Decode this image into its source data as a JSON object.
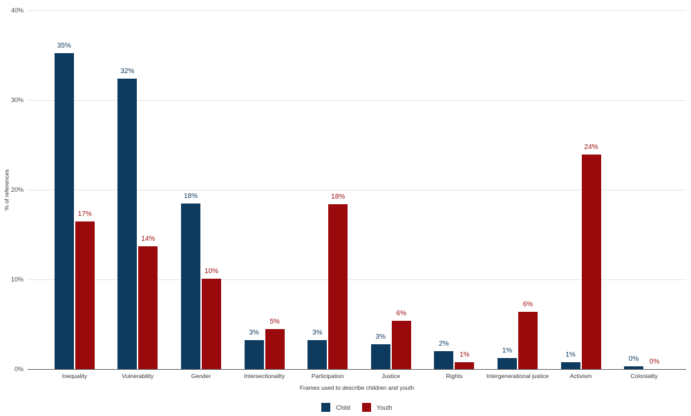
{
  "chart_data": {
    "type": "bar",
    "title": "",
    "xlabel": "Frames used to describe children and youth",
    "ylabel": "% of references",
    "categories": [
      "Inequality",
      "Vulnerability",
      "Gender",
      "Intersectionality",
      "Participation",
      "Justice",
      "Rights",
      "Intergenerational justice",
      "Activism",
      "Coloniality"
    ],
    "series": [
      {
        "name": "Child",
        "color": "#0d3a5f",
        "values": [
          35,
          32,
          18,
          3,
          3,
          3,
          2,
          1,
          1,
          0
        ],
        "labels": [
          "35%",
          "32%",
          "18%",
          "3%",
          "3%",
          "3%",
          "2%",
          "1%",
          "1%",
          "0%"
        ],
        "heights_pct": [
          35.2,
          32.4,
          18.5,
          3.2,
          3.2,
          2.8,
          2.0,
          1.2,
          0.8,
          0.3
        ]
      },
      {
        "name": "Youth",
        "color": "#9a0a0c",
        "values": [
          17,
          14,
          10,
          5,
          18,
          6,
          1,
          6,
          24,
          0
        ],
        "labels": [
          "17%",
          "14%",
          "10%",
          "5%",
          "18%",
          "6%",
          "1%",
          "6%",
          "24%",
          "0%"
        ],
        "heights_pct": [
          16.5,
          13.7,
          10.1,
          4.5,
          18.4,
          5.4,
          0.8,
          6.4,
          23.9,
          0
        ]
      }
    ],
    "y_ticks": [
      "0%",
      "10%",
      "20%",
      "30%",
      "40%"
    ],
    "ylim": [
      0,
      40
    ],
    "grid": true,
    "legend_position": "bottom",
    "colors": {
      "background": "#ffffff",
      "gridline": "#e4e4e4",
      "axis_line": "#5f5f5f",
      "tick_text": "#444444",
      "category_text": "#333333",
      "axis_title_text": "#333333",
      "legend_text": "#3c3c3c"
    }
  }
}
